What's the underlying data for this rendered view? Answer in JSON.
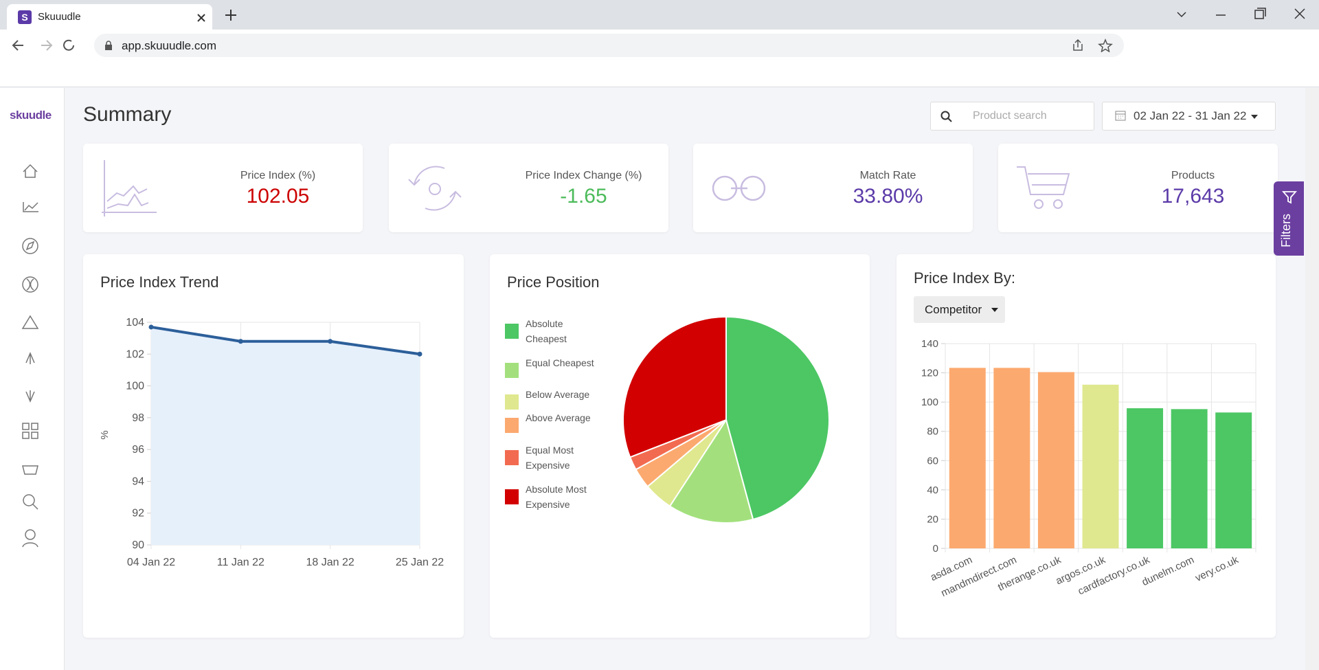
{
  "browser": {
    "favicon": "S",
    "tab_title": "Skuuudle",
    "url": "app.skuuudle.com"
  },
  "sidebar": {
    "logo": "skuudle"
  },
  "header": {
    "title": "Summary",
    "search_placeholder": "Product search",
    "date_range": "02 Jan 22 - 31 Jan 22"
  },
  "kpis": [
    {
      "label": "Price Index (%)",
      "value": "102.05"
    },
    {
      "label": "Price Index Change (%)",
      "value": "-1.65"
    },
    {
      "label": "Match Rate",
      "value": "33.80%"
    },
    {
      "label": "Products",
      "value": "17,643"
    }
  ],
  "filters_tab": "Filters",
  "chart_data": [
    {
      "type": "line",
      "title": "Price Index Trend",
      "y_label": "%",
      "categories": [
        "04 Jan 22",
        "11 Jan 22",
        "18 Jan 22",
        "25 Jan 22"
      ],
      "values": [
        103.7,
        102.8,
        102.8,
        102.0
      ],
      "color": "#2c5f9a",
      "area_color": "#e6f0fb",
      "ylim": [
        90,
        104
      ],
      "yticks": [
        90,
        92,
        94,
        96,
        98,
        100,
        102,
        104
      ],
      "grid": true
    },
    {
      "type": "pie",
      "title": "Price Position",
      "categories": [
        "Absolute Cheapest",
        "Equal Cheapest",
        "Below Average",
        "Above Average",
        "Equal Most Expensive",
        "Absolute Most Expensive"
      ],
      "values": [
        45.8,
        13.4,
        4.6,
        3.2,
        2.1,
        30.9
      ],
      "colors": [
        "#4cc764",
        "#a3e07d",
        "#dfe88e",
        "#fca96f",
        "#f26b50",
        "#d20000"
      ],
      "legend": "left"
    },
    {
      "type": "bar",
      "title": "Price Index By:",
      "dropdown": "Competitor",
      "categories": [
        "asda.com",
        "mandmdirect.com",
        "therange.co.uk",
        "argos.co.uk",
        "cardfactory.co.uk",
        "dunelm.com",
        "very.co.uk"
      ],
      "values": [
        123.4,
        123.4,
        120.5,
        111.9,
        95.8,
        95.2,
        92.9
      ],
      "colors": [
        "#fca96f",
        "#fca96f",
        "#fca96f",
        "#dfe88e",
        "#4cc764",
        "#4cc764",
        "#4cc764"
      ],
      "ylim": [
        0,
        140
      ],
      "yticks": [
        0,
        20,
        40,
        60,
        80,
        100,
        120,
        140
      ],
      "grid": true
    }
  ]
}
